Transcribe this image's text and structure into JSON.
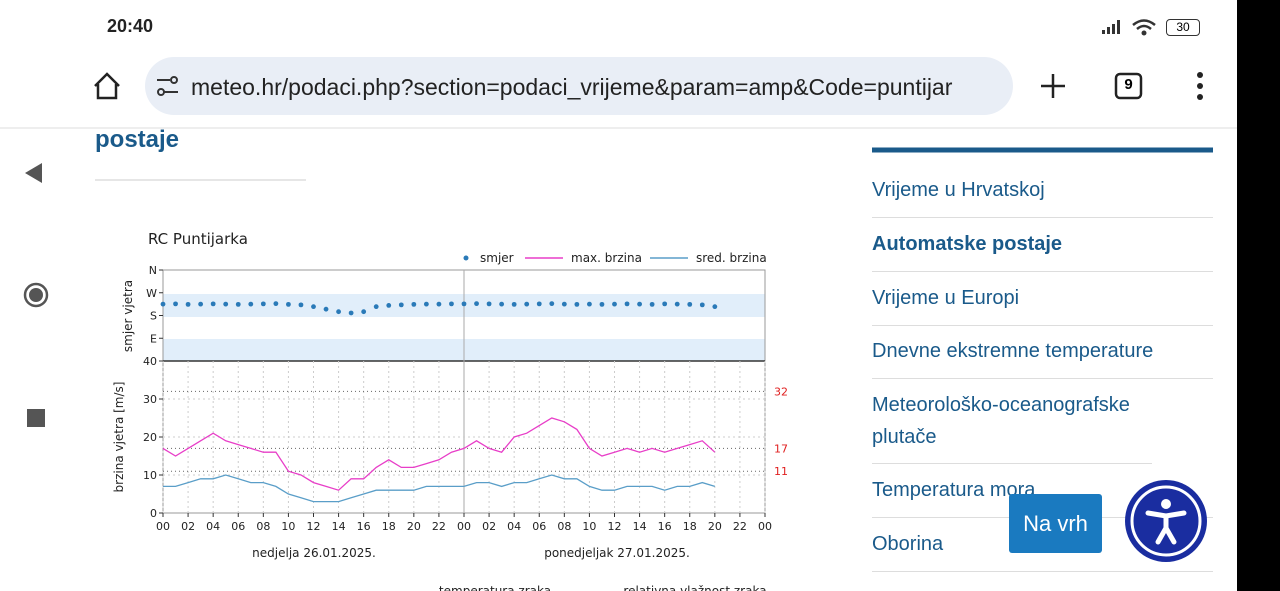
{
  "status": {
    "time": "20:40",
    "battery": "30"
  },
  "browser": {
    "url": "meteo.hr/podaci.php?section=podaci_vrijeme&param=amp&Code=puntijar",
    "tabs": "9"
  },
  "page": {
    "heading": "postaje",
    "menu": [
      "Vrijeme u Hrvatskoj",
      "Automatske postaje",
      "Vrijeme u Europi",
      "Dnevne ekstremne temperature",
      "Meteorološko-oceanografske plutače",
      "Temperatura mora",
      "Oborina"
    ],
    "active": 1,
    "back_to_top": "Na vrh",
    "next_charts": [
      "temperatura zraka",
      "relativna vlažnost zraka"
    ]
  },
  "chart": {
    "type": "line",
    "title": "RC Puntijarka",
    "x": [
      0,
      1,
      2,
      3,
      4,
      5,
      6,
      7,
      8,
      9,
      10,
      11,
      12,
      13,
      14,
      15,
      16,
      17,
      18,
      19,
      20,
      21,
      22,
      23,
      24,
      25,
      26,
      27,
      28,
      29,
      30,
      31,
      32,
      33,
      34,
      35,
      36,
      37,
      38,
      39,
      40,
      41,
      42,
      43,
      44
    ],
    "xlim": [
      0,
      48
    ],
    "xticks": [
      {
        "value": 0,
        "label": "00"
      },
      {
        "value": 2,
        "label": "02"
      },
      {
        "value": 4,
        "label": "04"
      },
      {
        "value": 6,
        "label": "06"
      },
      {
        "value": 8,
        "label": "08"
      },
      {
        "value": 10,
        "label": "10"
      },
      {
        "value": 12,
        "label": "12"
      },
      {
        "value": 14,
        "label": "14"
      },
      {
        "value": 16,
        "label": "16"
      },
      {
        "value": 18,
        "label": "18"
      },
      {
        "value": 20,
        "label": "20"
      },
      {
        "value": 22,
        "label": "22"
      },
      {
        "value": 24,
        "label": "00"
      },
      {
        "value": 26,
        "label": "02"
      },
      {
        "value": 28,
        "label": "04"
      },
      {
        "value": 30,
        "label": "06"
      },
      {
        "value": 32,
        "label": "08"
      },
      {
        "value": 34,
        "label": "10"
      },
      {
        "value": 36,
        "label": "12"
      },
      {
        "value": 38,
        "label": "14"
      },
      {
        "value": 40,
        "label": "16"
      },
      {
        "value": 42,
        "label": "18"
      },
      {
        "value": 44,
        "label": "20"
      },
      {
        "value": 46,
        "label": "22"
      },
      {
        "value": 48,
        "label": "00"
      }
    ],
    "dates": [
      "nedjelja  26.01.2025.",
      "ponedjeljak  27.01.2025."
    ],
    "ylabel_direction": "smjer vjetra",
    "ylim_direction": [
      0,
      360
    ],
    "yticks_direction": [
      {
        "value": 360,
        "label": "N"
      },
      {
        "value": 270,
        "label": "W"
      },
      {
        "value": 180,
        "label": "S"
      },
      {
        "value": 90,
        "label": "E"
      }
    ],
    "ylabel": "brzina vjetra [m/s]",
    "ylim": [
      0,
      40
    ],
    "yticks": [
      0,
      10,
      20,
      30,
      40
    ],
    "reference_lines": [
      32,
      17,
      11
    ],
    "reference_color": "#e02020",
    "series": [
      {
        "name": "smjer",
        "color": "#2a7ab8",
        "axis": "direction",
        "values": [
          225,
          226,
          224,
          225,
          226,
          225,
          224,
          225,
          226,
          227,
          224,
          222,
          215,
          205,
          195,
          190,
          195,
          215,
          220,
          222,
          224,
          225,
          225,
          226,
          226,
          227,
          226,
          225,
          224,
          225,
          226,
          227,
          225,
          224,
          225,
          224,
          225,
          226,
          225,
          224,
          226,
          225,
          224,
          222,
          215
        ]
      },
      {
        "name": "max. brzina",
        "color": "#e83ec8",
        "values": [
          17,
          15,
          17,
          19,
          21,
          19,
          18,
          17,
          16,
          16,
          11,
          10,
          8,
          7,
          6,
          9,
          9,
          12,
          14,
          12,
          12,
          13,
          14,
          16,
          17,
          19,
          17,
          16,
          20,
          21,
          23,
          25,
          24,
          22,
          17,
          15,
          16,
          17,
          16,
          17,
          16,
          17,
          18,
          19,
          16
        ]
      },
      {
        "name": "sred. brzina",
        "color": "#5a9ec8",
        "values": [
          7,
          7,
          8,
          9,
          9,
          10,
          9,
          8,
          8,
          7,
          5,
          4,
          3,
          3,
          3,
          4,
          5,
          6,
          6,
          6,
          6,
          7,
          7,
          7,
          7,
          8,
          8,
          7,
          8,
          8,
          9,
          10,
          9,
          9,
          7,
          6,
          6,
          7,
          7,
          7,
          6,
          7,
          7,
          8,
          7
        ]
      }
    ]
  }
}
